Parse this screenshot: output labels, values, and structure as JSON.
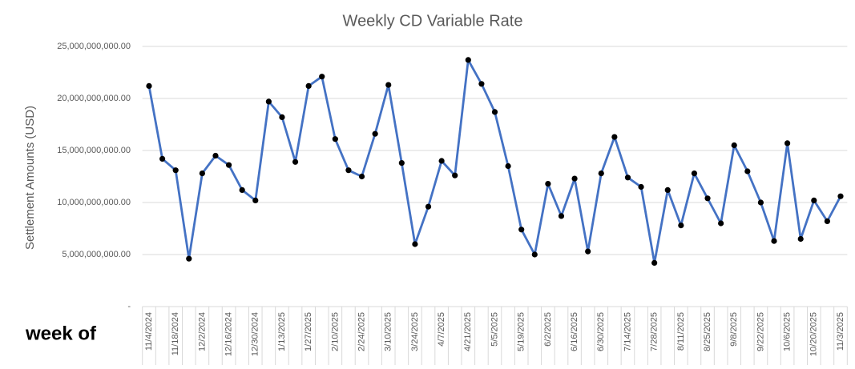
{
  "chart_data": {
    "type": "line",
    "title": "Weekly CD Variable Rate",
    "y_label": "Settlement Amounts (USD)",
    "x_label": "week of",
    "categories": [
      "11/4/2024",
      null,
      "11/18/2024",
      null,
      "12/2/2024",
      null,
      "12/16/2024",
      null,
      "12/30/2024",
      null,
      "1/13/2025",
      null,
      "1/27/2025",
      null,
      "2/10/2025",
      null,
      "2/24/2025",
      null,
      "3/10/2025",
      null,
      "3/24/2025",
      null,
      "4/7/2025",
      null,
      "4/21/2025",
      null,
      "5/5/2025",
      null,
      "5/19/2025",
      null,
      "6/2/2025",
      null,
      "6/16/2025",
      null,
      "6/30/2025",
      null,
      "7/14/2025",
      null,
      "7/28/2025",
      null,
      "8/11/2025",
      null,
      "8/25/2025",
      null,
      "9/8/2025",
      null,
      "9/22/2025",
      null,
      "10/6/2025",
      null,
      "10/20/2025",
      null,
      "11/3/2025"
    ],
    "values": [
      21200000000,
      14200000000,
      13100000000,
      4600000000,
      12800000000,
      14500000000,
      13600000000,
      11200000000,
      10200000000,
      19700000000,
      18200000000,
      13900000000,
      21200000000,
      22100000000,
      16100000000,
      13100000000,
      12500000000,
      16600000000,
      21300000000,
      13800000000,
      6000000000,
      9600000000,
      14000000000,
      12600000000,
      23700000000,
      21400000000,
      18700000000,
      13500000000,
      7400000000,
      5000000000,
      11800000000,
      8700000000,
      12300000000,
      5300000000,
      12800000000,
      16300000000,
      12400000000,
      11500000000,
      4200000000,
      11200000000,
      7800000000,
      12800000000,
      10400000000,
      8000000000,
      15500000000,
      13000000000,
      10000000000,
      6300000000,
      15700000000,
      6500000000,
      10200000000,
      8200000000,
      10600000000
    ],
    "color": "#4472c4",
    "marker_color": "#000000",
    "ylim": [
      0,
      25000000000
    ],
    "yticks": [
      {
        "value": 0,
        "label": "-"
      },
      {
        "value": 5000000000,
        "label": "5,000,000,000.00"
      },
      {
        "value": 10000000000,
        "label": "10,000,000,000.00"
      },
      {
        "value": 15000000000,
        "label": "15,000,000,000.00"
      },
      {
        "value": 20000000000,
        "label": "20,000,000,000.00"
      },
      {
        "value": 25000000000,
        "label": "25,000,000,000.00"
      }
    ],
    "grid": true
  }
}
